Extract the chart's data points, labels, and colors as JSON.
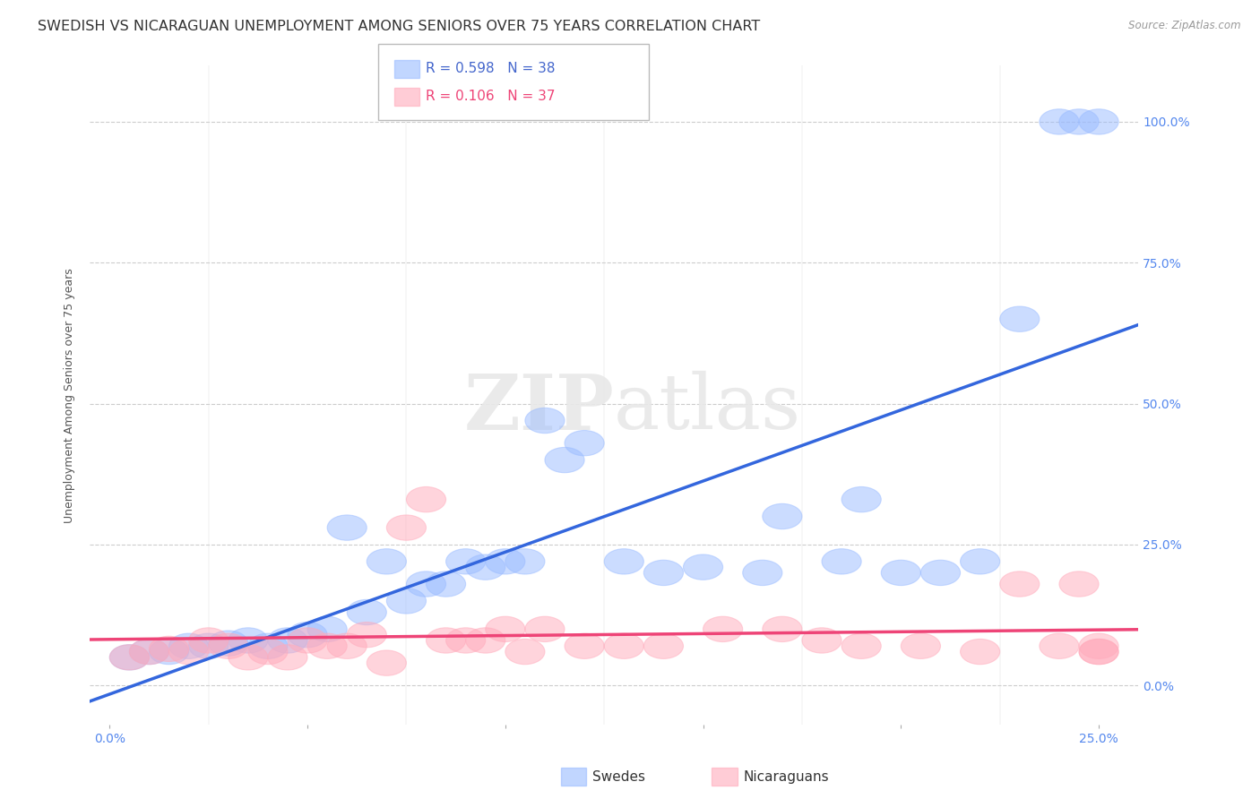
{
  "title": "SWEDISH VS NICARAGUAN UNEMPLOYMENT AMONG SENIORS OVER 75 YEARS CORRELATION CHART",
  "source": "Source: ZipAtlas.com",
  "ylabel": "Unemployment Among Seniors over 75 years",
  "background_color": "#ffffff",
  "blue_color": "#99bbff",
  "pink_color": "#ffaabb",
  "blue_line_color": "#3366dd",
  "pink_line_color": "#ee4477",
  "title_fontsize": 11.5,
  "axis_label_fontsize": 9,
  "tick_fontsize": 10,
  "legend_fontsize": 11,
  "swedes_x": [
    0.5,
    1.0,
    1.5,
    2.0,
    2.5,
    3.0,
    3.5,
    4.0,
    4.5,
    5.0,
    5.5,
    6.0,
    6.5,
    7.0,
    7.5,
    8.0,
    8.5,
    9.0,
    9.5,
    10.0,
    10.5,
    11.0,
    11.5,
    12.0,
    13.0,
    14.0,
    15.0,
    16.5,
    17.0,
    18.5,
    19.0,
    20.0,
    21.0,
    22.0,
    23.0,
    24.0,
    24.5,
    25.0
  ],
  "swedes_y": [
    5.0,
    6.0,
    6.0,
    7.0,
    7.0,
    7.5,
    8.0,
    7.0,
    8.0,
    9.0,
    10.0,
    28.0,
    13.0,
    22.0,
    15.0,
    18.0,
    18.0,
    22.0,
    21.0,
    22.0,
    22.0,
    47.0,
    40.0,
    43.0,
    22.0,
    20.0,
    21.0,
    20.0,
    30.0,
    22.0,
    33.0,
    20.0,
    20.0,
    22.0,
    65.0,
    100.0,
    100.0,
    100.0
  ],
  "nicaraguans_x": [
    0.5,
    1.0,
    1.5,
    2.0,
    2.5,
    3.0,
    3.5,
    4.0,
    4.5,
    5.0,
    5.5,
    6.0,
    6.5,
    7.0,
    7.5,
    8.0,
    8.5,
    9.0,
    9.5,
    10.0,
    10.5,
    11.0,
    12.0,
    13.0,
    14.0,
    15.5,
    17.0,
    18.0,
    19.0,
    20.5,
    22.0,
    23.0,
    24.0,
    24.5,
    25.0,
    25.0,
    25.0
  ],
  "nicaraguans_y": [
    5.0,
    6.0,
    6.5,
    6.0,
    8.0,
    7.0,
    5.0,
    6.0,
    5.0,
    8.0,
    7.0,
    7.0,
    9.0,
    4.0,
    28.0,
    33.0,
    8.0,
    8.0,
    8.0,
    10.0,
    6.0,
    10.0,
    7.0,
    7.0,
    7.0,
    10.0,
    10.0,
    8.0,
    7.0,
    7.0,
    6.0,
    18.0,
    7.0,
    18.0,
    7.0,
    6.0,
    6.0
  ]
}
